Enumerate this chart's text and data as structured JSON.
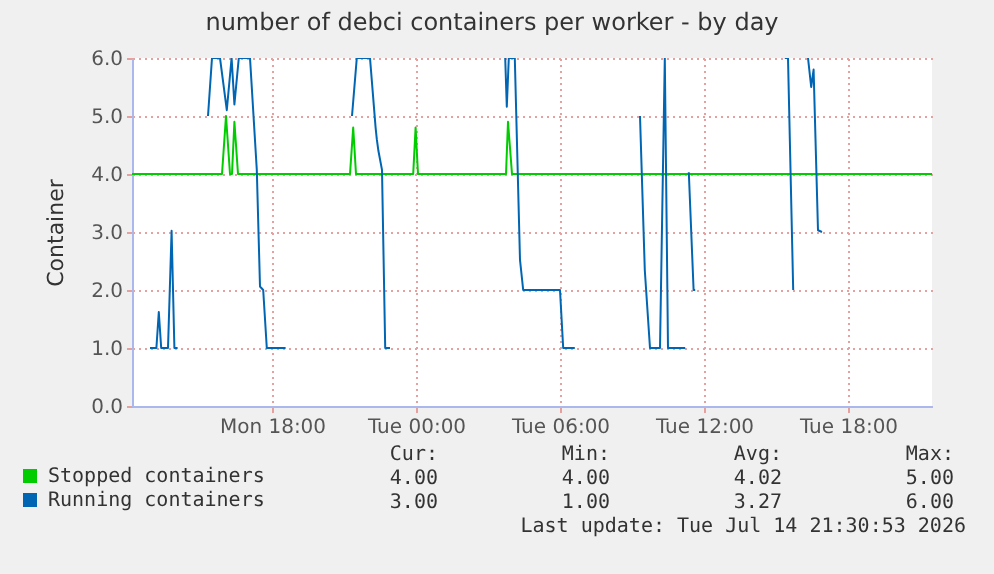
{
  "chart_data": {
    "type": "line",
    "title": "number of debci containers per worker - by day",
    "ylabel": "Container",
    "xlim": [
      "2026-07-13T12:10",
      "2026-07-14T21:30"
    ],
    "xticks": [
      {
        "value": "2026-07-13T18:00",
        "label": "Mon 18:00"
      },
      {
        "value": "2026-07-14T00:00",
        "label": "Tue 00:00"
      },
      {
        "value": "2026-07-14T06:00",
        "label": "Tue 06:00"
      },
      {
        "value": "2026-07-14T12:00",
        "label": "Tue 12:00"
      },
      {
        "value": "2026-07-14T18:00",
        "label": "Tue 18:00"
      }
    ],
    "ylim": [
      0,
      6
    ],
    "yticks": [
      {
        "value": 0,
        "label": "0.0"
      },
      {
        "value": 1,
        "label": "1.0"
      },
      {
        "value": 2,
        "label": "2.0"
      },
      {
        "value": 3,
        "label": "3.0"
      },
      {
        "value": 4,
        "label": "4.0"
      },
      {
        "value": 5,
        "label": "5.0"
      },
      {
        "value": 6,
        "label": "6.0"
      }
    ],
    "grid": true,
    "legend": "bottom left",
    "line_style": "solid",
    "series": [
      {
        "name": "Stopped containers",
        "color": "#00cc00",
        "x": [
          "2026-07-13T12:10",
          "2026-07-13T15:55",
          "2026-07-13T16:05",
          "2026-07-13T16:15",
          "2026-07-13T16:20",
          "2026-07-13T16:26",
          "2026-07-13T16:35",
          "2026-07-13T21:15",
          "2026-07-13T21:23",
          "2026-07-13T21:30",
          "2026-07-13T23:53",
          "2026-07-13T23:59",
          "2026-07-14T00:05",
          "2026-07-14T03:45",
          "2026-07-14T03:50",
          "2026-07-14T04:00",
          "2026-07-14T21:30"
        ],
        "values": [
          4,
          4,
          5,
          4,
          4,
          4.9,
          4,
          4,
          4.8,
          4,
          4,
          4.8,
          4,
          4,
          4.9,
          4,
          4
        ]
      },
      {
        "name": "Running containers",
        "color": "#0066b3",
        "x": [
          "2026-07-13T12:55",
          "2026-07-13T13:11",
          "2026-07-13T13:17",
          "2026-07-13T13:23",
          "2026-07-13T13:40",
          "2026-07-13T13:49",
          "2026-07-13T13:56",
          "2026-07-13T14:04",
          "2026-07-13T14:42",
          "2026-07-13T15:20",
          "2026-07-13T15:30",
          "2026-07-13T15:50",
          "2026-07-13T16:07",
          "2026-07-13T16:19",
          "2026-07-13T16:26",
          "2026-07-13T16:37",
          "2026-07-13T17:05",
          "2026-07-13T17:22",
          "2026-07-13T17:30",
          "2026-07-13T17:38",
          "2026-07-13T17:47",
          "2026-07-13T18:34",
          "2026-07-13T20:00",
          "2026-07-13T21:20",
          "2026-07-13T21:32",
          "2026-07-13T22:05",
          "2026-07-13T22:19",
          "2026-07-13T22:22",
          "2026-07-13T22:26",
          "2026-07-13T22:35",
          "2026-07-13T22:43",
          "2026-07-13T22:55",
          "2026-07-14T01:00",
          "2026-07-14T03:43",
          "2026-07-14T03:47",
          "2026-07-14T03:52",
          "2026-07-14T04:07",
          "2026-07-14T04:20",
          "2026-07-14T04:28",
          "2026-07-14T04:40",
          "2026-07-14T06:00",
          "2026-07-14T06:08",
          "2026-07-14T06:37",
          "2026-07-14T08:00",
          "2026-07-14T09:20",
          "2026-07-14T09:32",
          "2026-07-14T09:45",
          "2026-07-14T10:10",
          "2026-07-14T10:22",
          "2026-07-14T10:30",
          "2026-07-14T11:13",
          "2026-07-14T11:18",
          "2026-07-14T11:22",
          "2026-07-14T11:34",
          "2026-07-14T11:38",
          "2026-07-14T13:00",
          "2026-07-14T15:22",
          "2026-07-14T15:30",
          "2026-07-14T15:43",
          "2026-07-14T16:00",
          "2026-07-14T16:20",
          "2026-07-14T16:28",
          "2026-07-14T16:34",
          "2026-07-14T16:45",
          "2026-07-14T16:55"
        ],
        "values": [
          1,
          1,
          1.62,
          1,
          1,
          3.02,
          1,
          1,
          null,
          5,
          6,
          6,
          5.1,
          6,
          5.2,
          6,
          6,
          4.07,
          2.06,
          2,
          1,
          1,
          null,
          5,
          6,
          6,
          4.8,
          4.6,
          4.4,
          4.07,
          1,
          1,
          null,
          6,
          5.16,
          6,
          6,
          2.52,
          2,
          2,
          2,
          1,
          1,
          null,
          5,
          2.34,
          1,
          1,
          6,
          1,
          1,
          null,
          4.03,
          2,
          2,
          null,
          6,
          6,
          2,
          null,
          6,
          5.5,
          5.8,
          3.03,
          3
        ]
      }
    ],
    "annotations": [
      "Cur:",
      "Min:",
      "Avg:",
      "Max:",
      "4.00",
      "4.00",
      "4.02",
      "5.00",
      "3.00",
      "1.00",
      "3.27",
      "6.00",
      "Last update: Tue Jul 14 21:30:53 2026"
    ]
  }
}
